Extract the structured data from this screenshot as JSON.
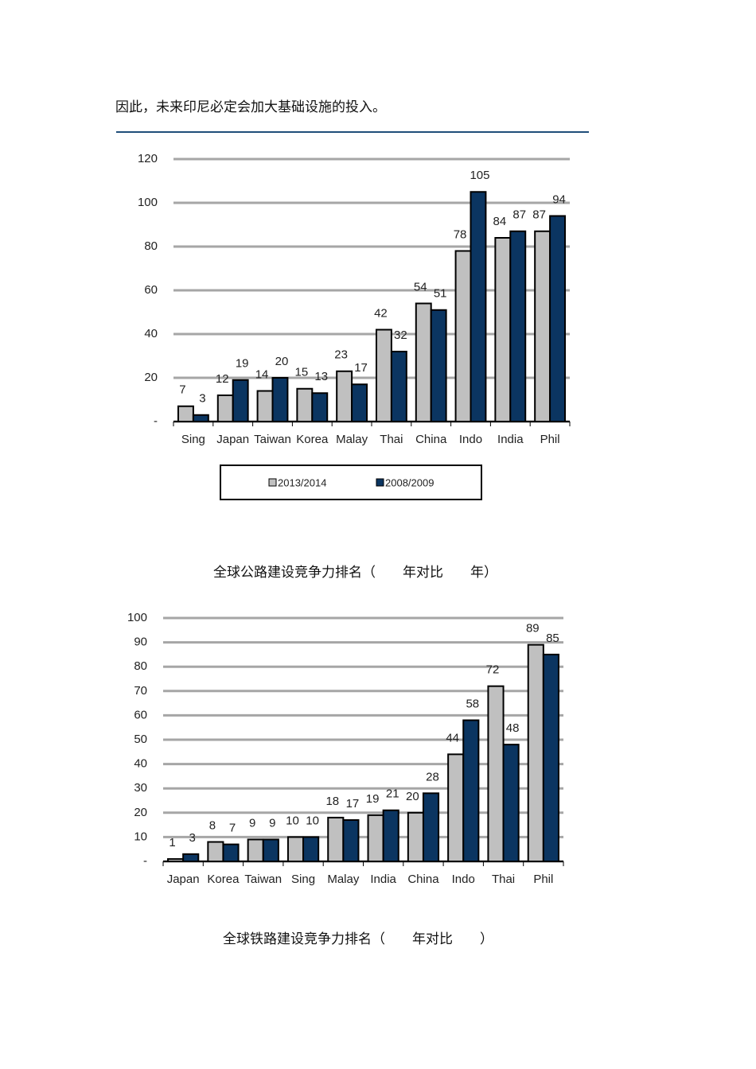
{
  "paragraph": "因此，未来印尼必定会加大基础设施的投入。",
  "captions": [
    "全球公路建设竞争力排名（　　年对比　　年）",
    "全球铁路建设竞争力排名（　　年对比　　）"
  ],
  "chart_data": [
    {
      "type": "bar",
      "categories": [
        "Sing",
        "Japan",
        "Taiwan",
        "Korea",
        "Malay",
        "Thai",
        "China",
        "Indo",
        "India",
        "Phil"
      ],
      "series": [
        {
          "name": "2013/2014",
          "color": "#c0c0c0",
          "values": [
            7,
            12,
            14,
            15,
            23,
            42,
            54,
            78,
            84,
            87
          ]
        },
        {
          "name": "2008/2009",
          "color": "#0b3561",
          "values": [
            3,
            19,
            20,
            13,
            17,
            32,
            51,
            105,
            87,
            94
          ]
        }
      ],
      "ylim": [
        0,
        120
      ],
      "yticks": [
        {
          "value": 0,
          "label": "-"
        },
        20,
        40,
        60,
        80,
        100,
        120
      ],
      "grid": true,
      "legend": "bottom"
    },
    {
      "type": "bar",
      "categories": [
        "Japan",
        "Korea",
        "Taiwan",
        "Sing",
        "Malay",
        "India",
        "China",
        "Indo",
        "Thai",
        "Phil"
      ],
      "series": [
        {
          "color": "#c0c0c0",
          "values": [
            1,
            8,
            9,
            10,
            18,
            19,
            20,
            44,
            72,
            89
          ]
        },
        {
          "color": "#0b3561",
          "values": [
            3,
            7,
            9,
            10,
            17,
            21,
            28,
            58,
            48,
            85
          ]
        }
      ],
      "ylim": [
        0,
        100
      ],
      "yticks": [
        {
          "value": 0,
          "label": "-"
        },
        10,
        20,
        30,
        40,
        50,
        60,
        70,
        80,
        90,
        100
      ],
      "grid": true
    }
  ]
}
